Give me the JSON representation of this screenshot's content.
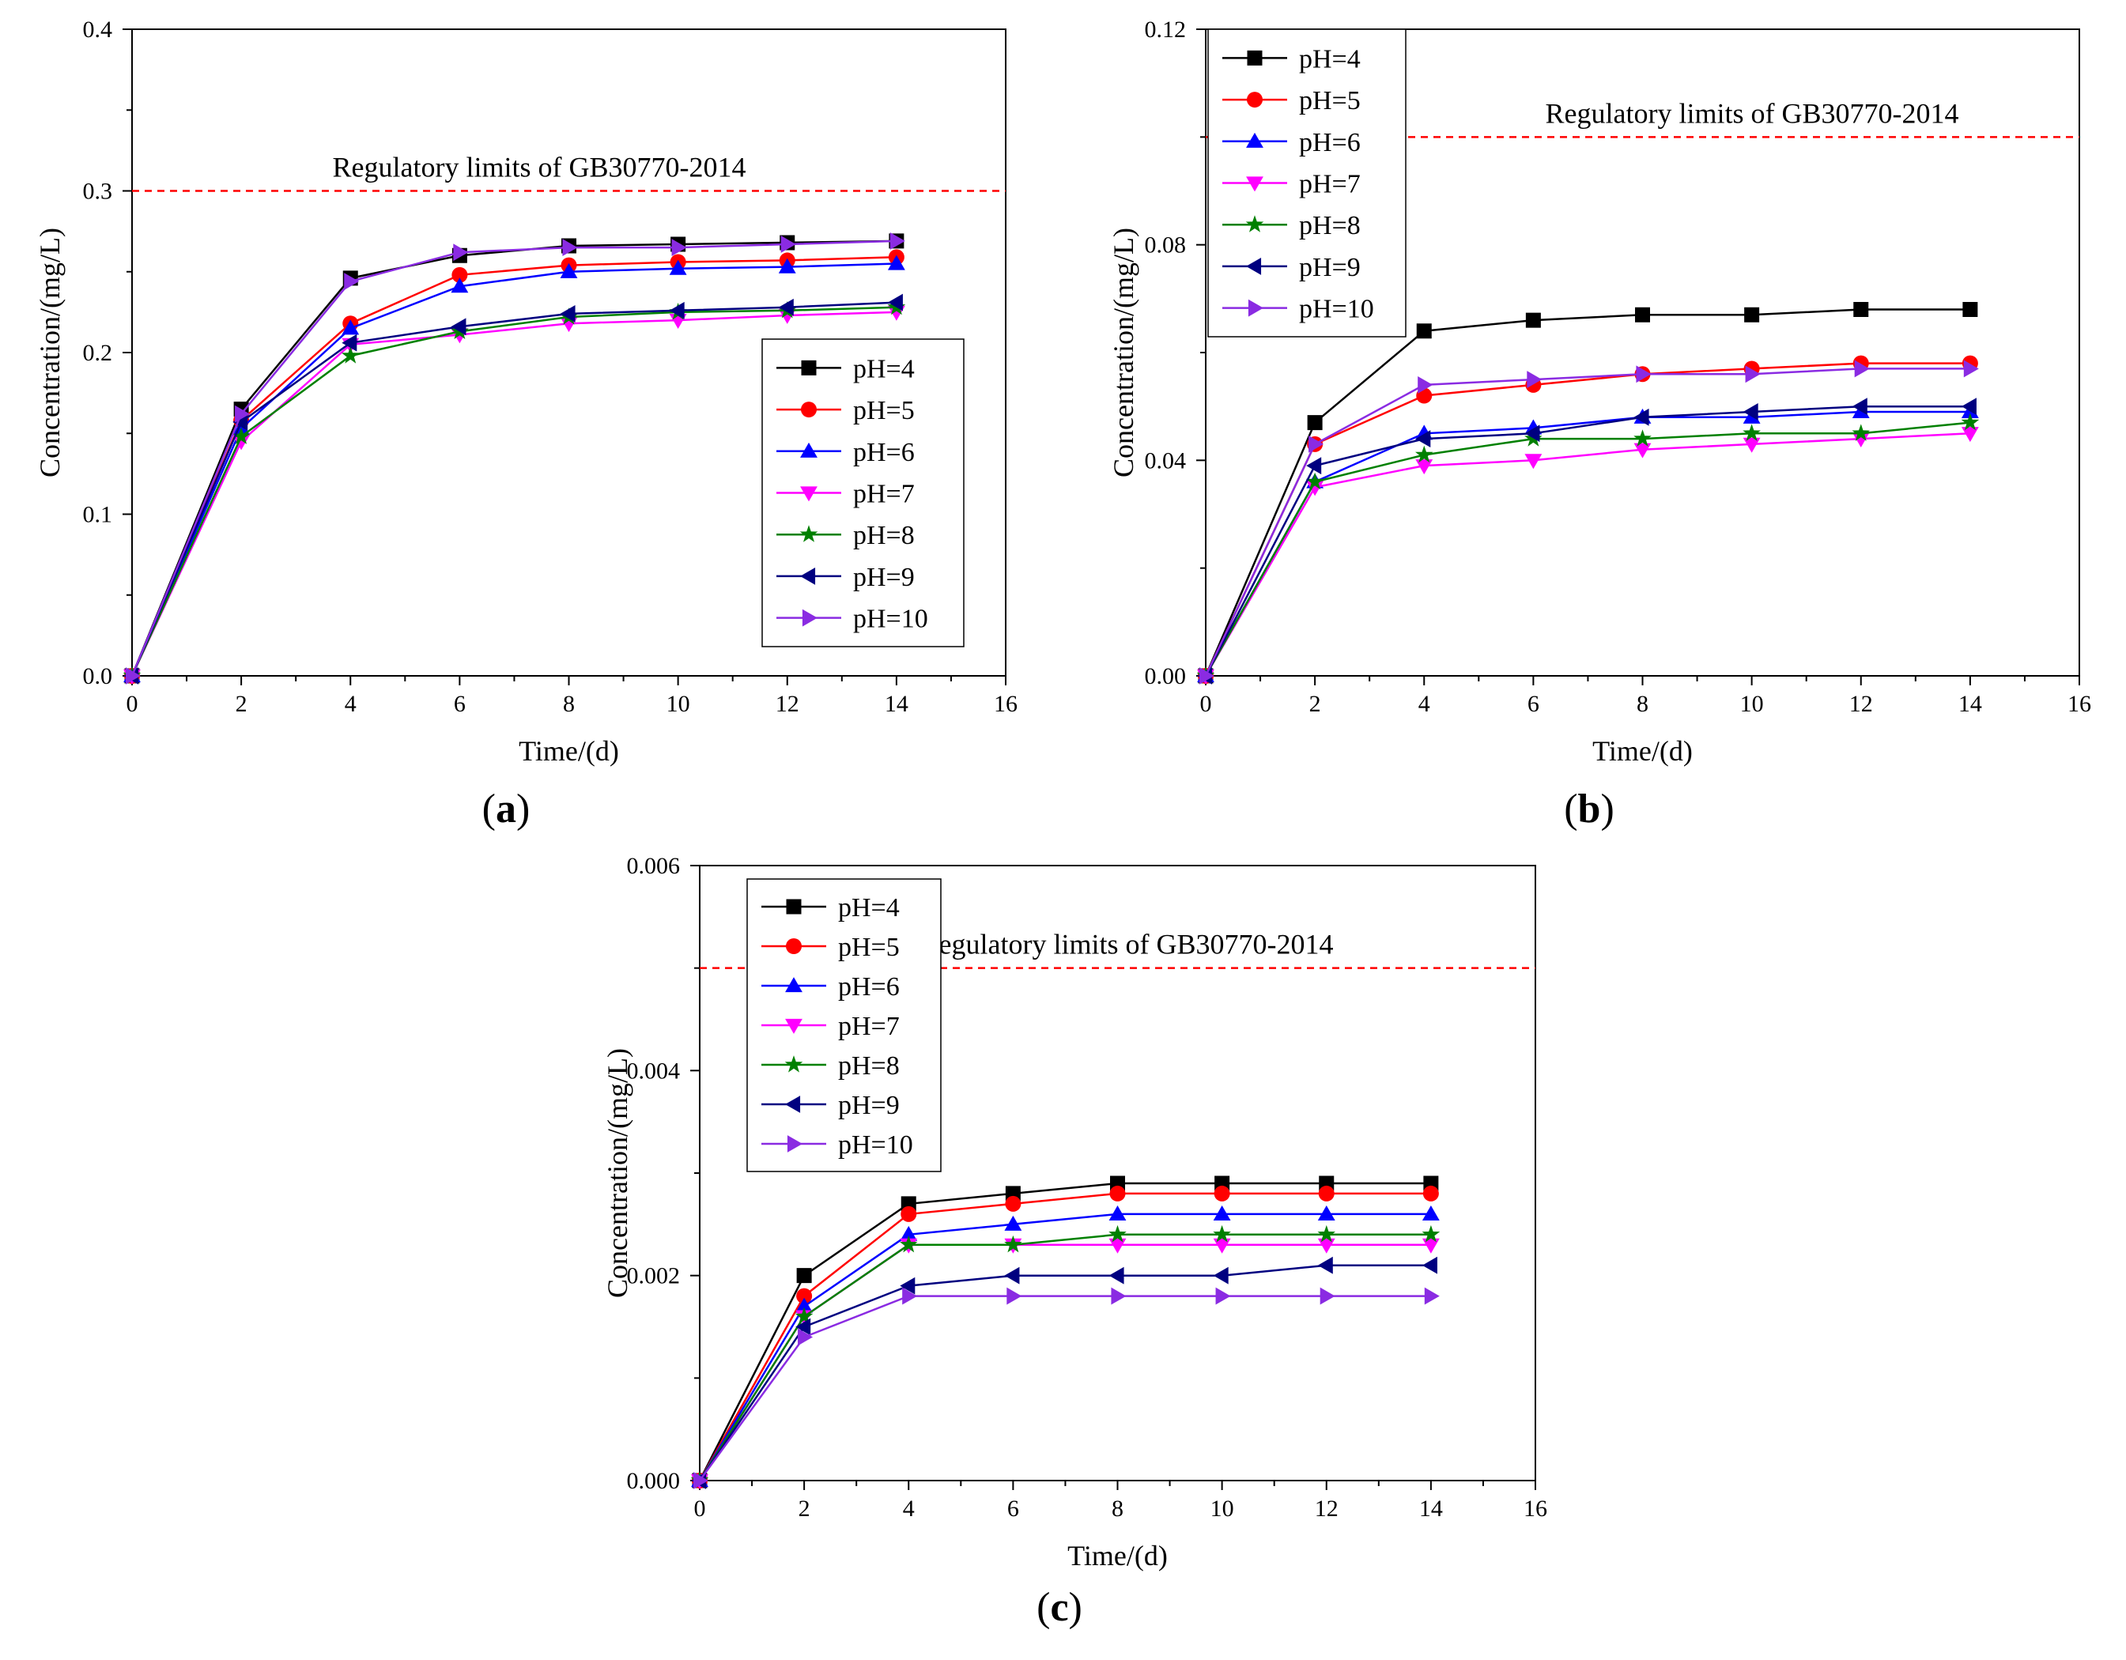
{
  "chart_data": [
    {
      "type": "line",
      "panel_label": "(a)",
      "panel_letter": "a",
      "title": "",
      "xlabel": "Time/(d)",
      "ylabel": "Concentration/(mg/L)",
      "xlim": [
        0,
        16
      ],
      "ylim": [
        0,
        0.4
      ],
      "x_ticks": [
        0,
        2,
        4,
        6,
        8,
        10,
        12,
        14,
        16
      ],
      "y_ticks": [
        0.0,
        0.1,
        0.2,
        0.3,
        0.4
      ],
      "x_tick_labels": [
        "0",
        "2",
        "4",
        "6",
        "8",
        "10",
        "12",
        "14",
        "16"
      ],
      "y_tick_labels": [
        "0.0",
        "0.1",
        "0.2",
        "0.3",
        "0.4"
      ],
      "grid": false,
      "legend_position": "bottom-right",
      "reference_line": {
        "value": 0.3,
        "label": "Regulatory limits of GB30770-2014",
        "color": "#ff0000"
      },
      "x": [
        0,
        2,
        4,
        6,
        8,
        10,
        12,
        14
      ],
      "series": [
        {
          "name": "pH=4",
          "color": "#000000",
          "marker": "square",
          "values": [
            0,
            0.165,
            0.246,
            0.26,
            0.266,
            0.267,
            0.268,
            0.269
          ]
        },
        {
          "name": "pH=5",
          "color": "#ff0000",
          "marker": "circle",
          "values": [
            0,
            0.158,
            0.218,
            0.248,
            0.254,
            0.256,
            0.257,
            0.259
          ]
        },
        {
          "name": "pH=6",
          "color": "#0000ff",
          "marker": "triangle-up",
          "values": [
            0,
            0.153,
            0.215,
            0.241,
            0.25,
            0.252,
            0.253,
            0.255
          ]
        },
        {
          "name": "pH=7",
          "color": "#ff00ff",
          "marker": "triangle-down",
          "values": [
            0,
            0.145,
            0.205,
            0.211,
            0.218,
            0.22,
            0.223,
            0.225
          ]
        },
        {
          "name": "pH=8",
          "color": "#008000",
          "marker": "star",
          "values": [
            0,
            0.148,
            0.198,
            0.213,
            0.222,
            0.225,
            0.226,
            0.228
          ]
        },
        {
          "name": "pH=9",
          "color": "#000080",
          "marker": "triangle-left",
          "values": [
            0,
            0.157,
            0.206,
            0.216,
            0.224,
            0.226,
            0.228,
            0.231
          ]
        },
        {
          "name": "pH=10",
          "color": "#8a2be2",
          "marker": "triangle-right",
          "values": [
            0,
            0.162,
            0.244,
            0.262,
            0.265,
            0.265,
            0.267,
            0.269
          ]
        }
      ]
    },
    {
      "type": "line",
      "panel_label": "(b)",
      "panel_letter": "b",
      "title": "",
      "xlabel": "Time/(d)",
      "ylabel": "Concentration/(mg/L)",
      "xlim": [
        0,
        16
      ],
      "ylim": [
        0,
        0.12
      ],
      "x_ticks": [
        0,
        2,
        4,
        6,
        8,
        10,
        12,
        14,
        16
      ],
      "y_ticks": [
        0.0,
        0.04,
        0.08,
        0.12
      ],
      "x_tick_labels": [
        "0",
        "2",
        "4",
        "6",
        "8",
        "10",
        "12",
        "14",
        "16"
      ],
      "y_tick_labels": [
        "0.00",
        "0.04",
        "0.08",
        "0.12"
      ],
      "grid": false,
      "legend_position": "top-left",
      "reference_line": {
        "value": 0.1,
        "label": "Regulatory limits of GB30770-2014",
        "color": "#ff0000"
      },
      "x": [
        0,
        2,
        4,
        6,
        8,
        10,
        12,
        14
      ],
      "series": [
        {
          "name": "pH=4",
          "color": "#000000",
          "marker": "square",
          "values": [
            0,
            0.047,
            0.064,
            0.066,
            0.067,
            0.067,
            0.068,
            0.068
          ]
        },
        {
          "name": "pH=5",
          "color": "#ff0000",
          "marker": "circle",
          "values": [
            0,
            0.043,
            0.052,
            0.054,
            0.056,
            0.057,
            0.058,
            0.058
          ]
        },
        {
          "name": "pH=6",
          "color": "#0000ff",
          "marker": "triangle-up",
          "values": [
            0,
            0.036,
            0.045,
            0.046,
            0.048,
            0.048,
            0.049,
            0.049
          ]
        },
        {
          "name": "pH=7",
          "color": "#ff00ff",
          "marker": "triangle-down",
          "values": [
            0,
            0.035,
            0.039,
            0.04,
            0.042,
            0.043,
            0.044,
            0.045
          ]
        },
        {
          "name": "pH=8",
          "color": "#008000",
          "marker": "star",
          "values": [
            0,
            0.036,
            0.041,
            0.044,
            0.044,
            0.045,
            0.045,
            0.047
          ]
        },
        {
          "name": "pH=9",
          "color": "#000080",
          "marker": "triangle-left",
          "values": [
            0,
            0.039,
            0.044,
            0.045,
            0.048,
            0.049,
            0.05,
            0.05
          ]
        },
        {
          "name": "pH=10",
          "color": "#8a2be2",
          "marker": "triangle-right",
          "values": [
            0,
            0.043,
            0.054,
            0.055,
            0.056,
            0.056,
            0.057,
            0.057
          ]
        }
      ]
    },
    {
      "type": "line",
      "panel_label": "(c)",
      "panel_letter": "c",
      "title": "",
      "xlabel": "Time/(d)",
      "ylabel": "Concentration/(mg/L)",
      "xlim": [
        0,
        16
      ],
      "ylim": [
        0,
        0.006
      ],
      "x_ticks": [
        0,
        2,
        4,
        6,
        8,
        10,
        12,
        14,
        16
      ],
      "y_ticks": [
        0.0,
        0.002,
        0.004,
        0.006
      ],
      "x_tick_labels": [
        "0",
        "2",
        "4",
        "6",
        "8",
        "10",
        "12",
        "14",
        "16"
      ],
      "y_tick_labels": [
        "0.000",
        "0.002",
        "0.004",
        "0.006"
      ],
      "grid": false,
      "legend_position": "top-left",
      "reference_line": {
        "value": 0.005,
        "label": "Regulatory limits of GB30770-2014",
        "color": "#ff0000"
      },
      "x": [
        0,
        2,
        4,
        6,
        8,
        10,
        12,
        14
      ],
      "series": [
        {
          "name": "pH=4",
          "color": "#000000",
          "marker": "square",
          "values": [
            0,
            0.002,
            0.0027,
            0.0028,
            0.0029,
            0.0029,
            0.0029,
            0.0029
          ]
        },
        {
          "name": "pH=5",
          "color": "#ff0000",
          "marker": "circle",
          "values": [
            0,
            0.0018,
            0.0026,
            0.0027,
            0.0028,
            0.0028,
            0.0028,
            0.0028
          ]
        },
        {
          "name": "pH=6",
          "color": "#0000ff",
          "marker": "triangle-up",
          "values": [
            0,
            0.0017,
            0.0024,
            0.0025,
            0.0026,
            0.0026,
            0.0026,
            0.0026
          ]
        },
        {
          "name": "pH=7",
          "color": "#ff00ff",
          "marker": "triangle-down",
          "values": [
            0,
            0.0016,
            0.0023,
            0.0023,
            0.0023,
            0.0023,
            0.0023,
            0.0023
          ]
        },
        {
          "name": "pH=8",
          "color": "#008000",
          "marker": "star",
          "values": [
            0,
            0.0016,
            0.0023,
            0.0023,
            0.0024,
            0.0024,
            0.0024,
            0.0024
          ]
        },
        {
          "name": "pH=9",
          "color": "#000080",
          "marker": "triangle-left",
          "values": [
            0,
            0.0015,
            0.0019,
            0.002,
            0.002,
            0.002,
            0.0021,
            0.0021
          ]
        },
        {
          "name": "pH=10",
          "color": "#8a2be2",
          "marker": "triangle-right",
          "values": [
            0,
            0.0014,
            0.0018,
            0.0018,
            0.0018,
            0.0018,
            0.0018,
            0.0018
          ]
        }
      ]
    }
  ]
}
